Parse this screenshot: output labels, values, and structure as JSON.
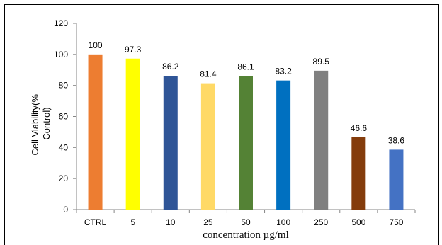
{
  "chart_data": {
    "type": "bar",
    "title": "",
    "xlabel": "concentration µg/ml",
    "ylabel_lines": [
      "Cell Viability(%",
      "Control)"
    ],
    "ylim": [
      0,
      120
    ],
    "yticks": [
      0,
      20,
      40,
      60,
      80,
      100,
      120
    ],
    "grid": false,
    "legend": "none",
    "categories": [
      "CTRL",
      "5",
      "10",
      "25",
      "50",
      "100",
      "250",
      "500",
      "750"
    ],
    "values": [
      100,
      97.3,
      86.2,
      81.4,
      86.1,
      83.2,
      89.5,
      46.6,
      38.6
    ],
    "value_labels": [
      "100",
      "97.3",
      "86.2",
      "81.4",
      "86.1",
      "83.2",
      "89.5",
      "46.6",
      "38.6"
    ],
    "colors": [
      "#ED7D31",
      "#FFFF00",
      "#2F5597",
      "#FFD966",
      "#548235",
      "#0070C0",
      "#808080",
      "#843C0C",
      "#4472C4"
    ]
  }
}
